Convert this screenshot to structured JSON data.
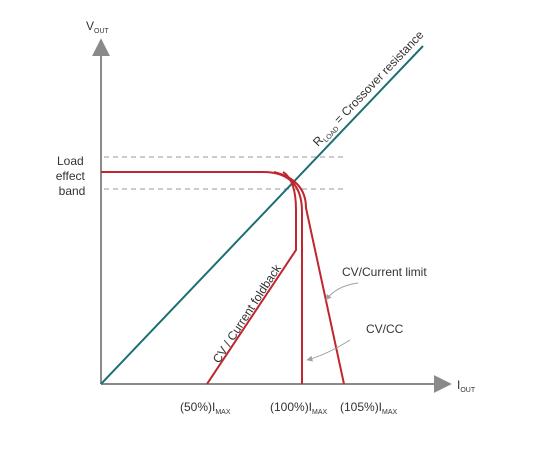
{
  "axes": {
    "y_label": "V",
    "y_label_sub": "OUT",
    "x_label": "I",
    "x_label_sub": "OUT"
  },
  "load_effect_band": {
    "line1": "Load",
    "line2": "effect",
    "line3": "band"
  },
  "rload_label": {
    "prefix": "R",
    "sub": "LOAD",
    "suffix": " = Crossover resistance"
  },
  "x_ticks": [
    {
      "text": "(50%)I",
      "sub": "MAX"
    },
    {
      "text": "(100%)I",
      "sub": "MAX"
    },
    {
      "text": "(105%)I",
      "sub": "MAX"
    }
  ],
  "curve_labels": {
    "foldback": "CV / Current foldback",
    "current_limit": "CV/Current limit",
    "cvcc": "CV/CC"
  },
  "colors": {
    "axis": "#8a8a8a",
    "curve": "#c0262d",
    "load_line": "#1d6f73",
    "band": "#9a9a9a",
    "arrow": "#a0a0a0"
  }
}
